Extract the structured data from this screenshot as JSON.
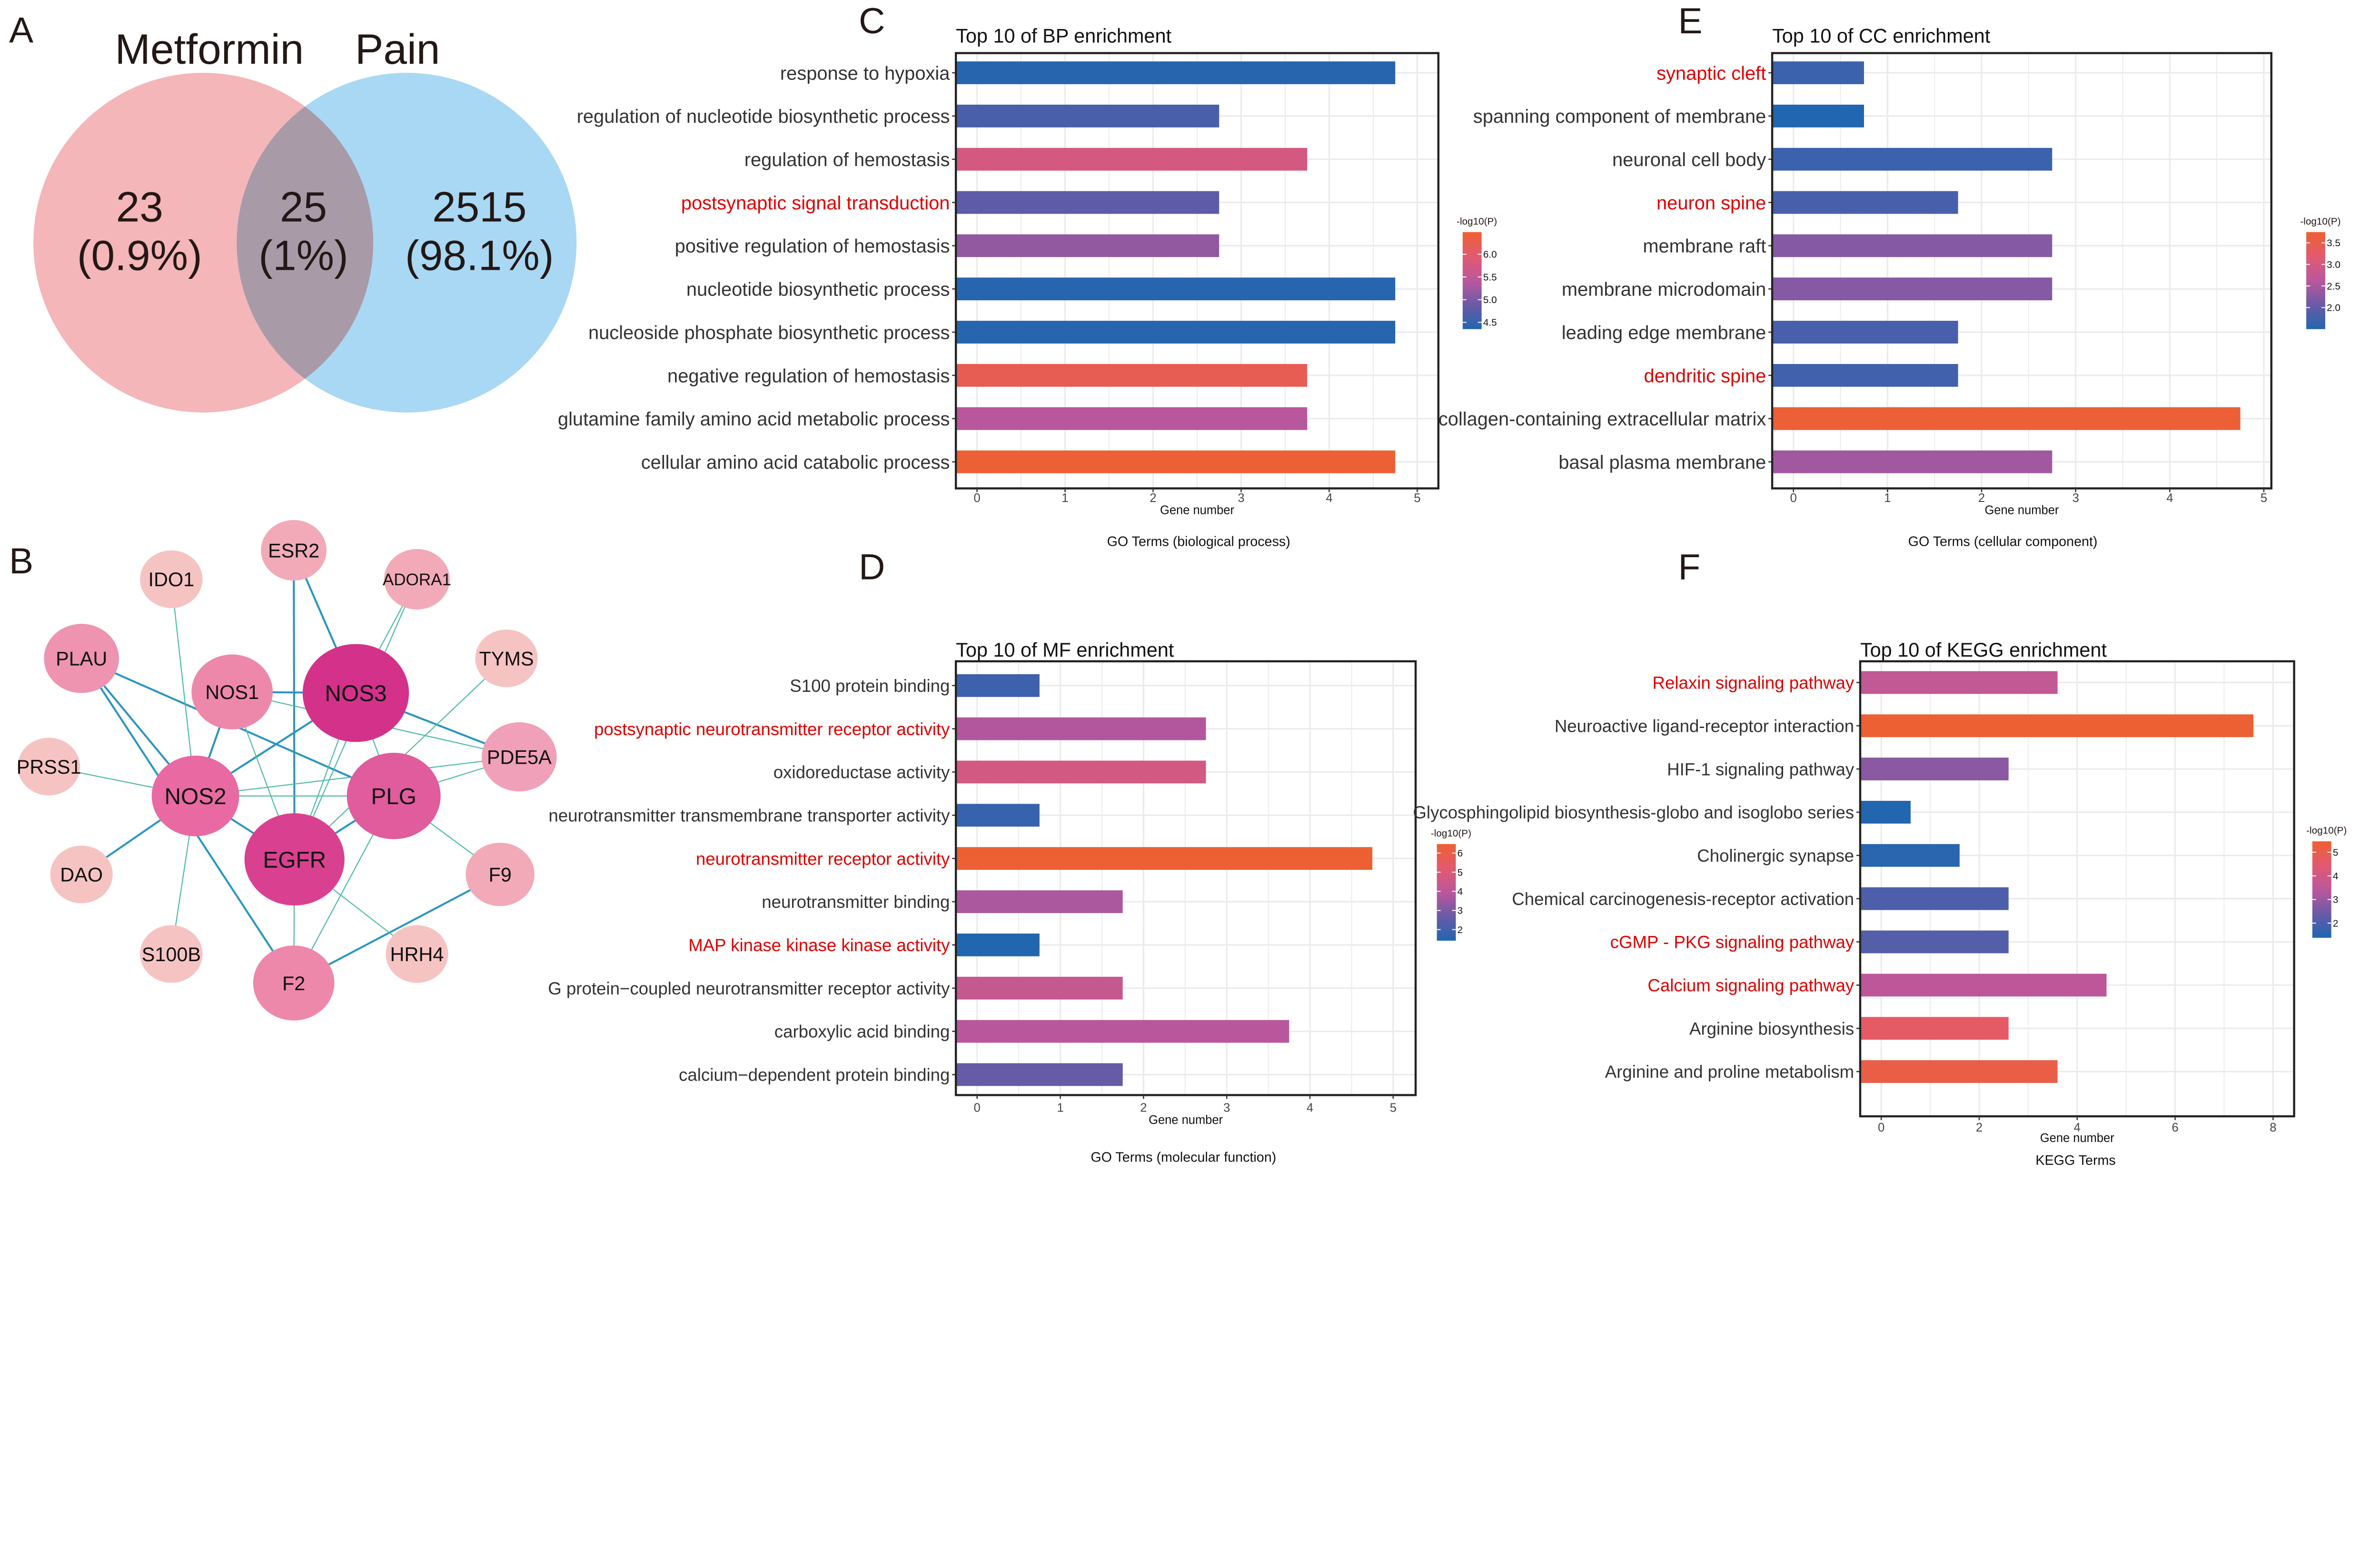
{
  "panel_labels": [
    "A",
    "B",
    "C",
    "D",
    "E",
    "F"
  ],
  "venn": {
    "sets": [
      {
        "name": "Metformin",
        "color": "#f4b6b8"
      },
      {
        "name": "Pain",
        "color": "#a8d8f4"
      }
    ],
    "overlap_color": "#a99aa8",
    "regions": [
      {
        "count": "23",
        "percent": "(0.9%)"
      },
      {
        "count": "25",
        "percent": "(1%)"
      },
      {
        "count": "2515",
        "percent": "(98.1%)"
      }
    ]
  },
  "network": {
    "edge_colors": {
      "strong": "#2a96c0",
      "weak": "#4fbaa6"
    },
    "nodes": [
      {
        "id": "ESR2",
        "color": "#f2aab8"
      },
      {
        "id": "IDO1",
        "color": "#f6c3c3"
      },
      {
        "id": "ADORA1",
        "color": "#f2aab8"
      },
      {
        "id": "PLAU",
        "color": "#ee93b0"
      },
      {
        "id": "NOS1",
        "color": "#ee88ab"
      },
      {
        "id": "NOS3",
        "color": "#d4318a"
      },
      {
        "id": "TYMS",
        "color": "#f6c3c3"
      },
      {
        "id": "PRSS1",
        "color": "#f6c3c3"
      },
      {
        "id": "PDE5A",
        "color": "#f0a0b8"
      },
      {
        "id": "NOS2",
        "color": "#e96aa2"
      },
      {
        "id": "PLG",
        "color": "#e05c9c"
      },
      {
        "id": "EGFR",
        "color": "#da4090"
      },
      {
        "id": "DAO",
        "color": "#f6c3c3"
      },
      {
        "id": "F9",
        "color": "#f2aab8"
      },
      {
        "id": "S100B",
        "color": "#f6c3c3"
      },
      {
        "id": "HRH4",
        "color": "#f6c3c3"
      },
      {
        "id": "F2",
        "color": "#ee88ab"
      }
    ],
    "edges": [
      [
        "ESR2",
        "EGFR",
        "strong"
      ],
      [
        "ESR2",
        "NOS3",
        "strong"
      ],
      [
        "PLAU",
        "NOS2",
        "strong"
      ],
      [
        "PLAU",
        "F2",
        "strong"
      ],
      [
        "PLAU",
        "PLG",
        "strong"
      ],
      [
        "NOS1",
        "NOS3",
        "strong"
      ],
      [
        "NOS1",
        "NOS2",
        "strong"
      ],
      [
        "NOS2",
        "NOS3",
        "strong"
      ],
      [
        "NOS2",
        "EGFR",
        "strong"
      ],
      [
        "NOS2",
        "DAO",
        "strong"
      ],
      [
        "F2",
        "F9",
        "strong"
      ],
      [
        "PLG",
        "EGFR",
        "strong"
      ],
      [
        "NOS3",
        "PDE5A",
        "strong"
      ],
      [
        "IDO1",
        "NOS2",
        "weak"
      ],
      [
        "ADORA1",
        "NOS3",
        "weak"
      ],
      [
        "ADORA1",
        "EGFR",
        "weak"
      ],
      [
        "TYMS",
        "EGFR",
        "weak"
      ],
      [
        "PRSS1",
        "NOS2",
        "weak"
      ],
      [
        "NOS2",
        "PLG",
        "weak"
      ],
      [
        "NOS2",
        "PDE5A",
        "weak"
      ],
      [
        "NOS1",
        "PDE5A",
        "weak"
      ],
      [
        "NOS1",
        "EGFR",
        "weak"
      ],
      [
        "NOS2",
        "S100B",
        "weak"
      ],
      [
        "EGFR",
        "HRH4",
        "weak"
      ],
      [
        "F2",
        "PLG",
        "weak"
      ],
      [
        "F2",
        "EGFR",
        "weak"
      ],
      [
        "PLG",
        "F9",
        "weak"
      ],
      [
        "NOS3",
        "EGFR",
        "weak"
      ],
      [
        "NOS3",
        "PLG",
        "weak"
      ],
      [
        "PLG",
        "PDE5A",
        "weak"
      ]
    ]
  },
  "colorscale": [
    "#2166b0",
    "#6a5aa6",
    "#bb579c",
    "#e25a70",
    "#ee6030"
  ],
  "highlight_color": "#e00000",
  "chart_data": [
    {
      "panel": "C",
      "type": "bar",
      "orientation": "horizontal",
      "title": "Top 10 of BP enrichment",
      "xlabel": "Gene number",
      "ylabel": "GO Terms (biological process)",
      "xlim": [
        -0.24,
        5.24
      ],
      "xticks": [
        0,
        1,
        2,
        3,
        4,
        5
      ],
      "grid": true,
      "legend": {
        "title": "-log10(P)",
        "range": [
          4.35,
          6.49
        ],
        "ticks": [
          "4.5",
          "5.0",
          "5.5",
          "6.0"
        ],
        "placement": "right"
      },
      "categories": [
        "response to hypoxia",
        "regulation of nucleotide biosynthetic process",
        "regulation of hemostasis",
        "postsynaptic signal transduction",
        "positive regulation of hemostasis",
        "nucleotide biosynthetic process",
        "nucleoside phosphate biosynthetic process",
        "negative regulation of hemostasis",
        "glutamine family amino acid metabolic process",
        "cellular amino acid catabolic process"
      ],
      "values": [
        4.75,
        2.75,
        3.75,
        2.75,
        2.75,
        4.75,
        4.75,
        3.75,
        3.75,
        4.75
      ],
      "neg_log10_p": [
        4.4,
        4.65,
        5.75,
        4.8,
        5.15,
        4.4,
        4.4,
        6.2,
        5.4,
        6.45
      ],
      "highlighted": [
        "postsynaptic signal transduction"
      ]
    },
    {
      "panel": "D",
      "type": "bar",
      "orientation": "horizontal",
      "title": "Top 10 of MF enrichment",
      "xlabel": "Gene number",
      "ylabel": "GO Terms (molecular function)",
      "xlim": [
        -0.255,
        5.27
      ],
      "xticks": [
        0,
        1,
        2,
        3,
        4,
        5
      ],
      "grid": true,
      "legend": {
        "title": "-log10(P)",
        "range": [
          1.42,
          6.47
        ],
        "ticks": [
          "2",
          "3",
          "4",
          "5",
          "6"
        ],
        "placement": "right"
      },
      "categories": [
        "S100 protein binding",
        "postsynaptic neurotransmitter receptor activity",
        "oxidoreductase activity",
        "neurotransmitter transmembrane transporter activity",
        "neurotransmitter receptor activity",
        "neurotransmitter binding",
        "MAP kinase kinase kinase activity",
        "G protein−coupled neurotransmitter receptor activity",
        "carboxylic acid binding",
        "calcium−dependent protein binding"
      ],
      "values": [
        0.75,
        2.75,
        2.75,
        0.75,
        4.75,
        1.75,
        0.75,
        1.75,
        3.75,
        1.75
      ],
      "neg_log10_p": [
        1.9,
        3.8,
        4.7,
        1.8,
        6.4,
        3.7,
        1.45,
        4.3,
        3.9,
        2.6
      ],
      "highlighted": [
        "postsynaptic neurotransmitter receptor activity",
        "neurotransmitter receptor activity",
        "MAP kinase kinase kinase activity"
      ]
    },
    {
      "panel": "E",
      "type": "bar",
      "orientation": "horizontal",
      "title": "Top 10 of CC enrichment",
      "xlabel": "Gene number",
      "ylabel": "GO Terms (cellular component)",
      "xlim": [
        -0.226,
        5.08
      ],
      "xticks": [
        0,
        1,
        2,
        3,
        4,
        5
      ],
      "grid": true,
      "legend": {
        "title": "-log10(P)",
        "range": [
          1.5,
          3.75
        ],
        "ticks": [
          "2.0",
          "2.5",
          "3.0",
          "3.5"
        ],
        "placement": "right"
      },
      "categories": [
        "synaptic cleft",
        "spanning component of membrane",
        "neuronal cell body",
        "neuron spine",
        "membrane raft",
        "membrane microdomain",
        "leading edge membrane",
        "dendritic spine",
        "collagen-containing extracellular matrix",
        "basal plasma membrane"
      ],
      "values": [
        0.75,
        0.75,
        2.75,
        1.75,
        2.75,
        2.75,
        1.75,
        1.75,
        4.75,
        2.75
      ],
      "neg_log10_p": [
        1.7,
        1.5,
        1.7,
        1.8,
        2.25,
        2.25,
        1.8,
        1.75,
        3.7,
        2.45
      ],
      "highlighted": [
        "synaptic cleft",
        "neuron spine",
        "dendritic spine"
      ]
    },
    {
      "panel": "F",
      "type": "bar",
      "orientation": "horizontal",
      "title": "Top 10 of KEGG enrichment",
      "xlabel": "Gene number",
      "ylabel": "KEGG Terms",
      "xlim": [
        -0.43,
        8.43
      ],
      "xticks": [
        0,
        2,
        4,
        6,
        8
      ],
      "grid": true,
      "legend": {
        "title": "-log10(P)",
        "range": [
          1.38,
          5.46
        ],
        "ticks": [
          "2",
          "3",
          "4",
          "5"
        ],
        "placement": "right"
      },
      "categories": [
        "Relaxin signaling pathway",
        "Neuroactive ligand-receptor interaction",
        "HIF-1 signaling pathway",
        "Glycosphingolipid biosynthesis-globo and isoglobo series",
        "Cholinergic synapse",
        "Chemical carcinogenesis-receptor activation",
        "cGMP - PKG signaling pathway",
        "Calcium signaling pathway",
        "Arginine biosynthesis",
        "Arginine and proline metabolism"
      ],
      "values": [
        3.6,
        7.6,
        2.6,
        0.6,
        1.6,
        2.6,
        2.6,
        4.6,
        2.6,
        3.6
      ],
      "neg_log10_p": [
        3.6,
        5.4,
        2.8,
        1.4,
        1.5,
        2.0,
        2.1,
        3.5,
        4.6,
        5.1
      ],
      "highlighted": [
        "Relaxin signaling pathway",
        "cGMP - PKG signaling pathway",
        "Calcium signaling pathway"
      ]
    }
  ]
}
